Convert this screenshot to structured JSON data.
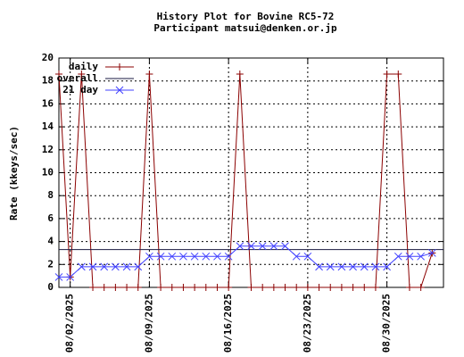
{
  "chart_data": {
    "type": "line",
    "title": "History Plot for Bovine RC5-72",
    "subtitle": "Participant matsui@denken.or.jp",
    "ylabel": "Rate (kkeys/sec)",
    "x": [
      "08/01/2025",
      "08/02/2025",
      "08/03/2025",
      "08/04/2025",
      "08/05/2025",
      "08/06/2025",
      "08/07/2025",
      "08/08/2025",
      "08/09/2025",
      "08/10/2025",
      "08/11/2025",
      "08/12/2025",
      "08/13/2025",
      "08/14/2025",
      "08/15/2025",
      "08/16/2025",
      "08/17/2025",
      "08/18/2025",
      "08/19/2025",
      "08/20/2025",
      "08/21/2025",
      "08/22/2025",
      "08/23/2025",
      "08/24/2025",
      "08/25/2025",
      "08/26/2025",
      "08/27/2025",
      "08/28/2025",
      "08/29/2025",
      "08/30/2025",
      "08/31/2025",
      "09/01/2025",
      "09/02/2025",
      "09/03/2025"
    ],
    "series": [
      {
        "name": "daily",
        "color": "#8b0000",
        "marker": "+",
        "values": [
          18.6,
          0.9,
          18.6,
          0,
          0,
          0,
          0,
          0,
          18.6,
          0,
          0,
          0,
          0,
          0,
          0,
          0,
          18.6,
          0,
          0,
          0,
          0,
          0,
          0,
          0,
          0,
          0,
          0,
          0,
          0,
          18.6,
          18.6,
          0,
          0,
          3.0
        ]
      },
      {
        "name": "overall",
        "color": "#1a1a40",
        "value": 3.3
      },
      {
        "name": "21 day",
        "color": "#4040ff",
        "marker": "x",
        "values": [
          0.9,
          0.9,
          1.8,
          1.8,
          1.8,
          1.8,
          1.8,
          1.8,
          2.7,
          2.7,
          2.7,
          2.7,
          2.7,
          2.7,
          2.7,
          2.7,
          3.6,
          3.6,
          3.6,
          3.6,
          3.6,
          2.7,
          2.7,
          1.8,
          1.8,
          1.8,
          1.8,
          1.8,
          1.8,
          1.8,
          2.7,
          2.7,
          2.7,
          3.0
        ]
      }
    ],
    "xlim": [
      "08/01/2025",
      "09/04/2025"
    ],
    "xticks": [
      "08/02/2025",
      "08/09/2025",
      "08/16/2025",
      "08/23/2025",
      "08/30/2025"
    ],
    "ylim": [
      0,
      20
    ],
    "yticks": [
      0,
      2,
      4,
      6,
      8,
      10,
      12,
      14,
      16,
      18,
      20
    ],
    "grid": true,
    "legend": "top-left"
  }
}
